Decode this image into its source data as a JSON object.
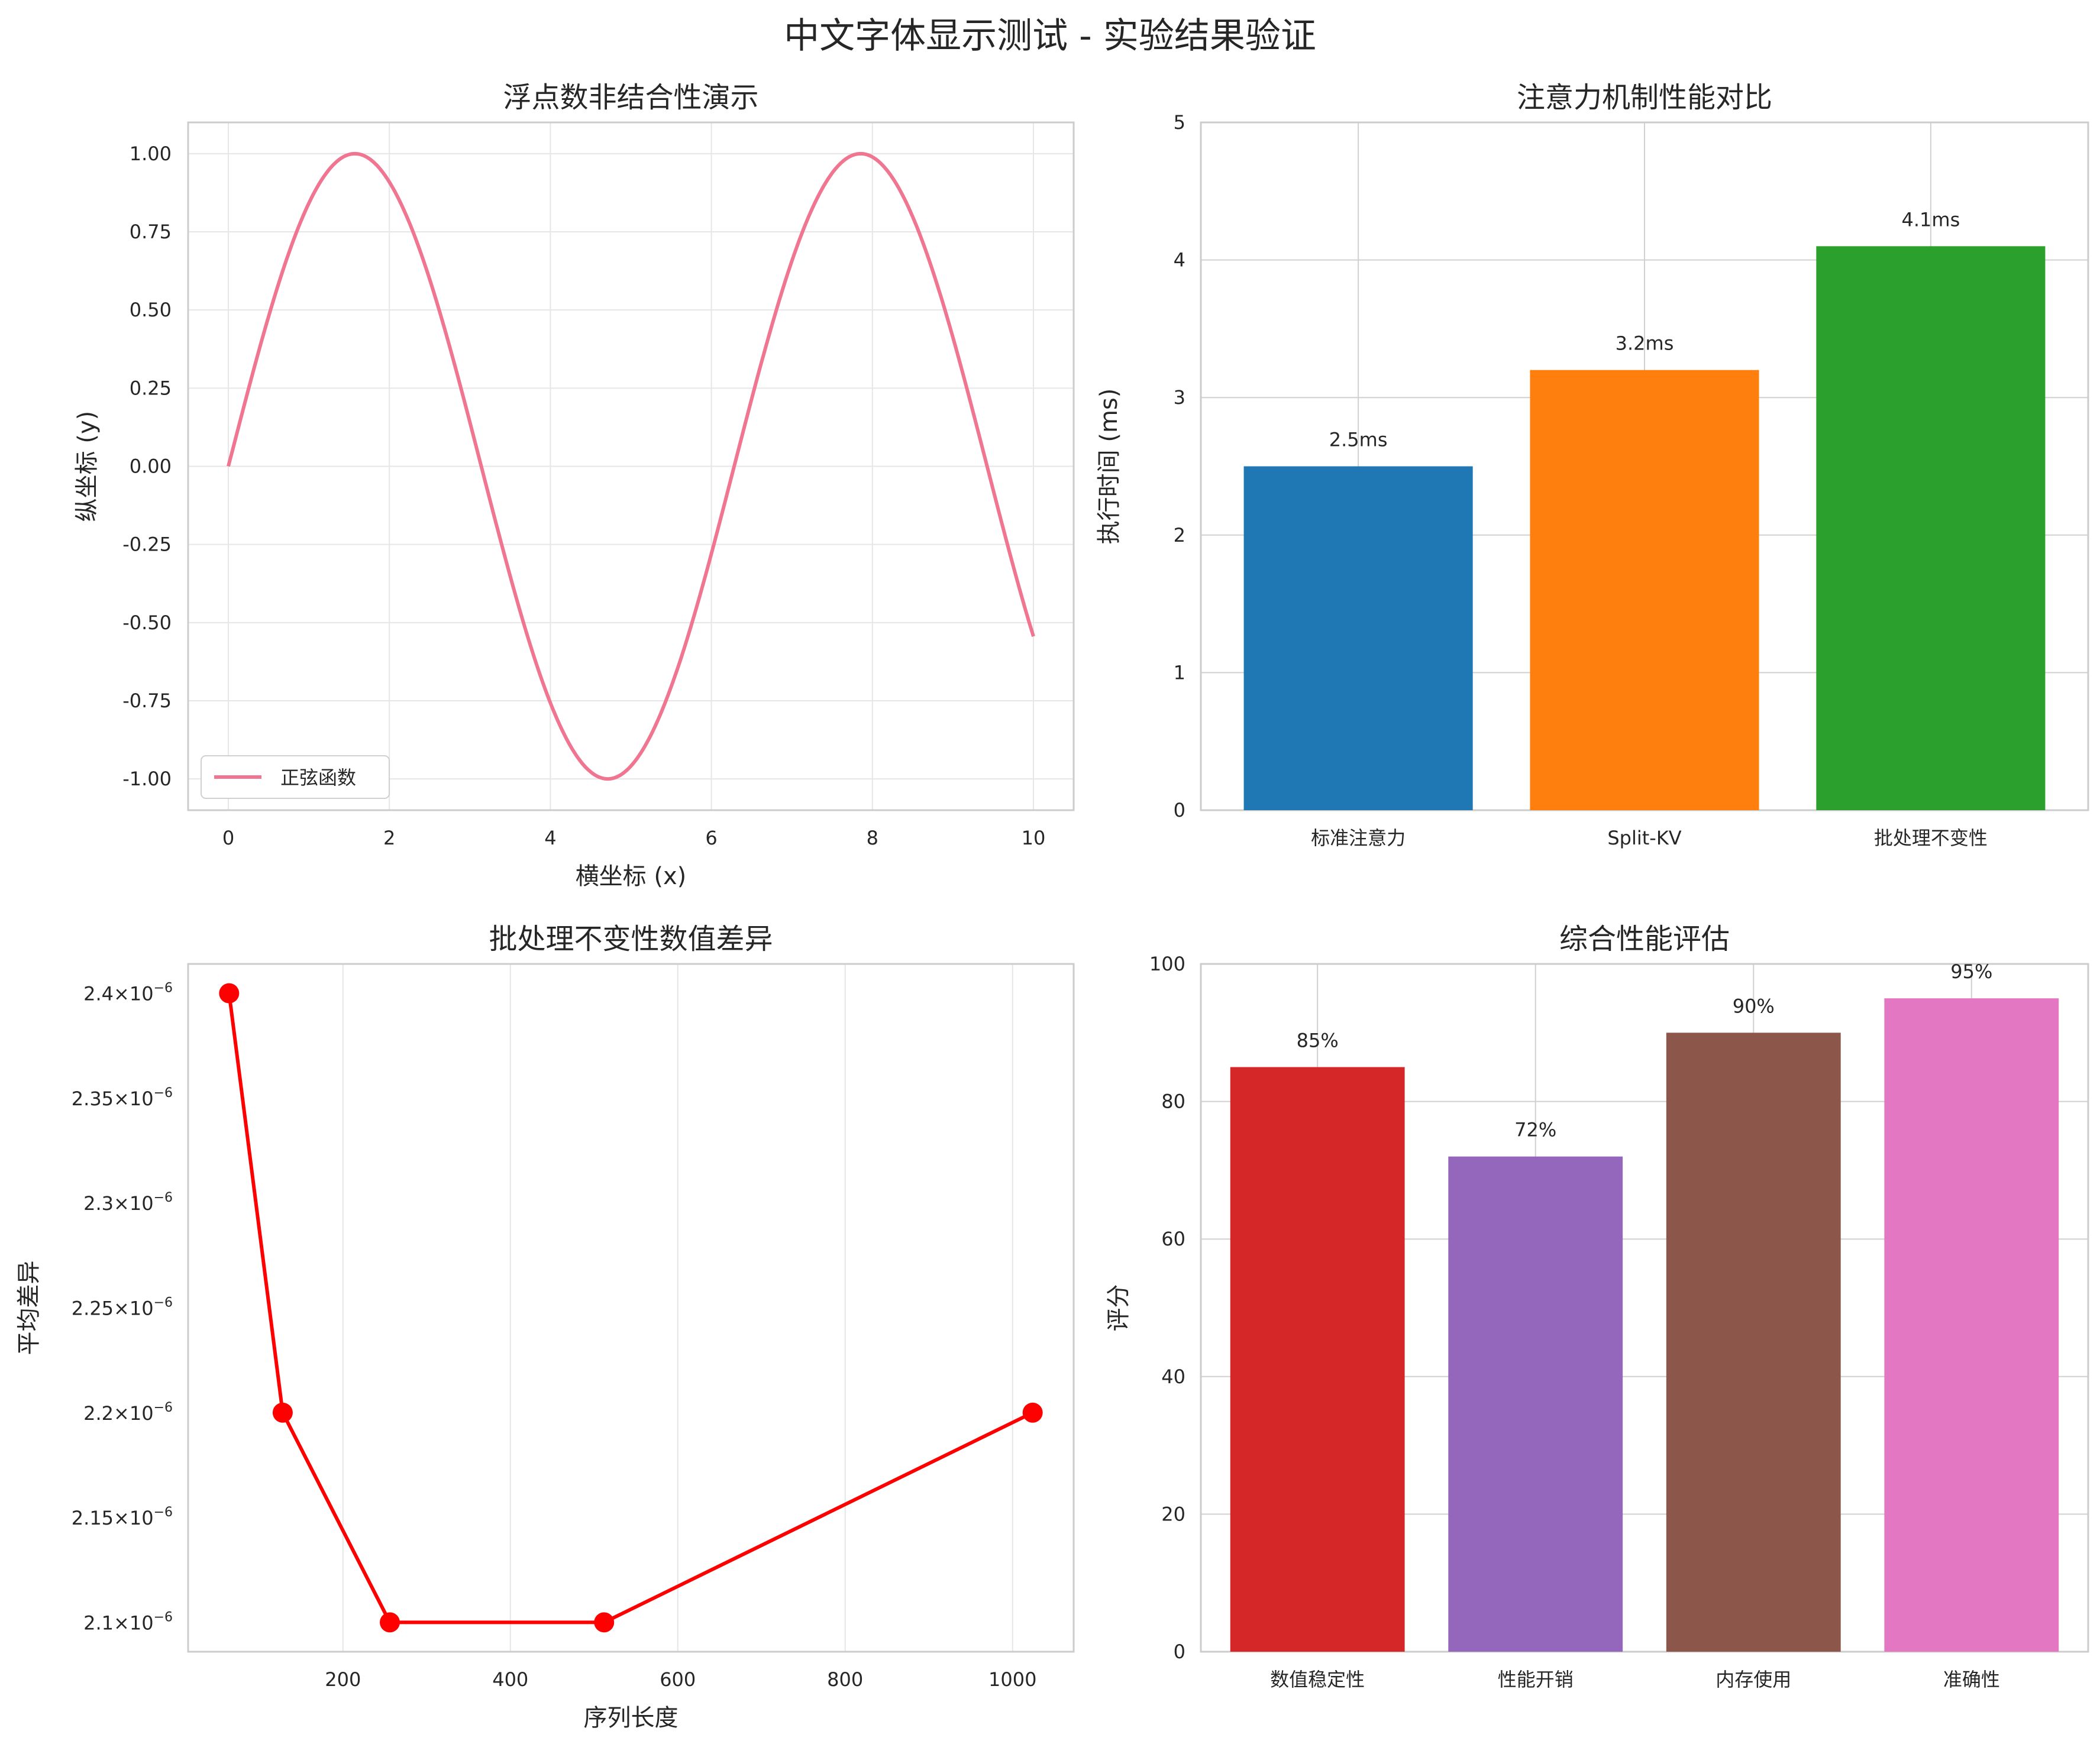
{
  "figure": {
    "suptitle": "中文字体显示测试 - 实验结果验证"
  },
  "chart_data": [
    {
      "type": "line",
      "title": "浮点数非结合性演示",
      "xlabel": "横坐标 (x)",
      "ylabel": "纵坐标 (y)",
      "function": "sin(x)",
      "x_range": [
        0,
        10
      ],
      "xlim": [
        -0.5,
        10.5
      ],
      "ylim": [
        -1.1,
        1.1
      ],
      "xticks": [
        0,
        2,
        4,
        6,
        8,
        10
      ],
      "xtick_labels": [
        "0",
        "2",
        "4",
        "6",
        "8",
        "10"
      ],
      "yticks": [
        1.0,
        0.75,
        0.5,
        0.25,
        0.0,
        -0.25,
        -0.5,
        -0.75,
        -1.0
      ],
      "ytick_labels": [
        "1.00",
        "0.75",
        "0.50",
        "0.25",
        "0.00",
        "-0.25",
        "-0.50",
        "-0.75",
        "-1.00"
      ],
      "series": [
        {
          "name": "正弦函数",
          "color": "#f07590"
        }
      ],
      "legend": "lower-left",
      "grid": true
    },
    {
      "type": "bar",
      "title": "注意力机制性能对比",
      "xlabel": "",
      "ylabel": "执行时间 (ms)",
      "categories": [
        "标准注意力",
        "Split-KV",
        "批处理不变性"
      ],
      "values": [
        2.5,
        3.2,
        4.1
      ],
      "labels": [
        "2.5ms",
        "3.2ms",
        "4.1ms"
      ],
      "colors": [
        "#1f77b4",
        "#ff7f0e",
        "#2ca02c"
      ],
      "ylim": [
        0,
        5
      ],
      "yticks": [
        0,
        1,
        2,
        3,
        4,
        5
      ],
      "ytick_labels": [
        "0",
        "1",
        "2",
        "3",
        "4",
        "5"
      ],
      "grid": true
    },
    {
      "type": "line",
      "title": "批处理不变性数值差异",
      "xlabel": "序列长度",
      "ylabel": "平均差异",
      "x": [
        64,
        128,
        256,
        512,
        1024
      ],
      "y": [
        2.4e-06,
        2.2e-06,
        2.1e-06,
        2.1e-06,
        2.2e-06
      ],
      "xlim": [
        15,
        1073
      ],
      "ylim": [
        2.086e-06,
        2.414e-06
      ],
      "xticks": [
        200,
        400,
        600,
        800,
        1000
      ],
      "xtick_labels": [
        "200",
        "400",
        "600",
        "800",
        "1000"
      ],
      "yticks": [
        2.4e-06,
        2.35e-06,
        2.3e-06,
        2.25e-06,
        2.2e-06,
        2.15e-06,
        2.1e-06
      ],
      "ytick_mantissas": [
        "2.4",
        "2.35",
        "2.3",
        "2.25",
        "2.2",
        "2.15",
        "2.1"
      ],
      "ytick_times": "×10",
      "ytick_exponent": "−6",
      "color": "#ff0000",
      "marker": "circle",
      "grid": true
    },
    {
      "type": "bar",
      "title": "综合性能评估",
      "xlabel": "",
      "ylabel": "评分",
      "categories": [
        "数值稳定性",
        "性能开销",
        "内存使用",
        "准确性"
      ],
      "values": [
        85,
        72,
        90,
        95
      ],
      "labels": [
        "85%",
        "72%",
        "90%",
        "95%"
      ],
      "colors": [
        "#d62728",
        "#9467bd",
        "#8c564b",
        "#e377c2"
      ],
      "ylim": [
        0,
        100
      ],
      "yticks": [
        0,
        20,
        40,
        60,
        80,
        100
      ],
      "ytick_labels": [
        "0",
        "20",
        "40",
        "60",
        "80",
        "100"
      ],
      "grid": true
    }
  ]
}
